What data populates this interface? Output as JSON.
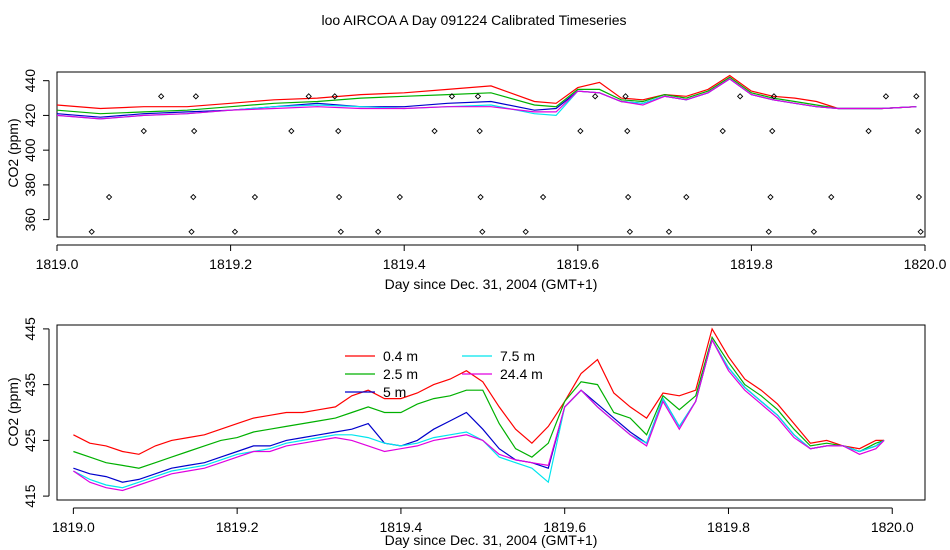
{
  "title": "loo AIRCOA A  Day 091224  Calibrated Timeseries",
  "colors": {
    "0.4 m": "#ff0000",
    "2.5 m": "#00b000",
    "5 m": "#0000cc",
    "7.5 m": "#00e5ee",
    "24.4 m": "#e000e0"
  },
  "chart_data": [
    {
      "type": "line",
      "xlabel": "Day since Dec. 31, 2004 (GMT+1)",
      "ylabel": "CO2 (ppm)",
      "xlim": [
        1819.0,
        1820.0
      ],
      "ylim": [
        350,
        445
      ],
      "xticks": [
        "1819.0",
        "1819.2",
        "1819.4",
        "1819.6",
        "1819.8",
        "1820.0"
      ],
      "yticks": [
        "360",
        "380",
        "400",
        "420",
        "440"
      ],
      "x": [
        1819.0,
        1819.05,
        1819.1,
        1819.15,
        1819.2,
        1819.25,
        1819.3,
        1819.35,
        1819.4,
        1819.45,
        1819.5,
        1819.55,
        1819.575,
        1819.6,
        1819.625,
        1819.65,
        1819.675,
        1819.7,
        1819.725,
        1819.75,
        1819.775,
        1819.8,
        1819.825,
        1819.85,
        1819.875,
        1819.9,
        1819.95,
        1819.99
      ],
      "series": [
        {
          "name": "0.4 m",
          "values": [
            426,
            424,
            425,
            425,
            427,
            429,
            430,
            432,
            433,
            435,
            437,
            428,
            427,
            436,
            439,
            430,
            429,
            432,
            431,
            435,
            443,
            434,
            431,
            430,
            428,
            424,
            424,
            425
          ]
        },
        {
          "name": "2.5 m",
          "values": [
            423,
            421,
            422,
            423,
            425,
            427,
            428,
            430,
            431,
            432,
            433,
            426,
            425,
            435,
            435,
            429,
            428,
            432,
            430,
            434,
            442,
            433,
            430,
            428,
            426,
            424,
            424,
            425
          ]
        },
        {
          "name": "5 m",
          "values": [
            421,
            419,
            421,
            422,
            423,
            425,
            427,
            425,
            425,
            427,
            428,
            423,
            424,
            434,
            433,
            428,
            427,
            431,
            429,
            433,
            441,
            432,
            429,
            427,
            425,
            424,
            424,
            425
          ]
        },
        {
          "name": "7.5 m",
          "values": [
            420,
            418,
            420,
            421,
            423,
            425,
            426,
            425,
            424,
            425,
            426,
            421,
            420,
            434,
            433,
            428,
            427,
            431,
            429,
            433,
            441,
            432,
            429,
            427,
            425,
            424,
            424,
            425
          ]
        },
        {
          "name": "24.4 m",
          "values": [
            420,
            418,
            420,
            421,
            423,
            424,
            425,
            424,
            424,
            425,
            425,
            422,
            422,
            434,
            433,
            428,
            426,
            431,
            429,
            433,
            441,
            432,
            429,
            427,
            425,
            424,
            424,
            425
          ]
        }
      ],
      "markers": [
        {
          "x": 1819.04,
          "y": 353
        },
        {
          "x": 1819.06,
          "y": 373
        },
        {
          "x": 1819.1,
          "y": 411
        },
        {
          "x": 1819.12,
          "y": 431
        },
        {
          "x": 1819.155,
          "y": 353
        },
        {
          "x": 1819.157,
          "y": 373
        },
        {
          "x": 1819.158,
          "y": 411
        },
        {
          "x": 1819.16,
          "y": 431
        },
        {
          "x": 1819.205,
          "y": 353
        },
        {
          "x": 1819.228,
          "y": 373
        },
        {
          "x": 1819.27,
          "y": 411
        },
        {
          "x": 1819.29,
          "y": 431
        },
        {
          "x": 1819.32,
          "y": 431
        },
        {
          "x": 1819.324,
          "y": 411
        },
        {
          "x": 1819.325,
          "y": 373
        },
        {
          "x": 1819.327,
          "y": 353
        },
        {
          "x": 1819.37,
          "y": 353
        },
        {
          "x": 1819.395,
          "y": 373
        },
        {
          "x": 1819.435,
          "y": 411
        },
        {
          "x": 1819.455,
          "y": 431
        },
        {
          "x": 1819.485,
          "y": 431
        },
        {
          "x": 1819.487,
          "y": 411
        },
        {
          "x": 1819.488,
          "y": 373
        },
        {
          "x": 1819.49,
          "y": 353
        },
        {
          "x": 1819.54,
          "y": 353
        },
        {
          "x": 1819.56,
          "y": 373
        },
        {
          "x": 1819.603,
          "y": 411
        },
        {
          "x": 1819.62,
          "y": 431
        },
        {
          "x": 1819.655,
          "y": 431
        },
        {
          "x": 1819.657,
          "y": 411
        },
        {
          "x": 1819.658,
          "y": 373
        },
        {
          "x": 1819.66,
          "y": 353
        },
        {
          "x": 1819.705,
          "y": 353
        },
        {
          "x": 1819.725,
          "y": 373
        },
        {
          "x": 1819.767,
          "y": 411
        },
        {
          "x": 1819.787,
          "y": 431
        },
        {
          "x": 1819.82,
          "y": 353
        },
        {
          "x": 1819.822,
          "y": 373
        },
        {
          "x": 1819.824,
          "y": 411
        },
        {
          "x": 1819.826,
          "y": 431
        },
        {
          "x": 1819.872,
          "y": 353
        },
        {
          "x": 1819.892,
          "y": 373
        },
        {
          "x": 1819.935,
          "y": 411
        },
        {
          "x": 1819.955,
          "y": 431
        },
        {
          "x": 1819.99,
          "y": 431
        },
        {
          "x": 1819.992,
          "y": 411
        },
        {
          "x": 1819.993,
          "y": 373
        },
        {
          "x": 1819.995,
          "y": 353
        }
      ]
    },
    {
      "type": "line",
      "xlabel": "Day since Dec. 31, 2004 (GMT+1)",
      "ylabel": "CO2 (ppm)",
      "xlim": [
        1818.98,
        1820.04
      ],
      "ylim": [
        414.3,
        445.7
      ],
      "xticks": [
        "1819.0",
        "1819.2",
        "1819.4",
        "1819.6",
        "1819.8",
        "1820.0"
      ],
      "yticks": [
        "415",
        "425",
        "435",
        "445"
      ],
      "legend": [
        "0.4 m",
        "2.5 m",
        "5 m",
        "7.5 m",
        "24.4 m"
      ],
      "x": [
        1819.0,
        1819.02,
        1819.04,
        1819.06,
        1819.08,
        1819.1,
        1819.12,
        1819.14,
        1819.16,
        1819.18,
        1819.2,
        1819.22,
        1819.24,
        1819.26,
        1819.28,
        1819.3,
        1819.32,
        1819.34,
        1819.36,
        1819.38,
        1819.4,
        1819.42,
        1819.44,
        1819.46,
        1819.48,
        1819.5,
        1819.52,
        1819.54,
        1819.56,
        1819.58,
        1819.6,
        1819.62,
        1819.64,
        1819.66,
        1819.68,
        1819.7,
        1819.72,
        1819.74,
        1819.76,
        1819.78,
        1819.8,
        1819.82,
        1819.84,
        1819.86,
        1819.88,
        1819.9,
        1819.92,
        1819.94,
        1819.96,
        1819.98,
        1819.99
      ],
      "series": [
        {
          "name": "0.4 m",
          "values": [
            426,
            424.5,
            424,
            423,
            422.5,
            424,
            425,
            425.5,
            426,
            427,
            428,
            429,
            429.5,
            430,
            430,
            430.5,
            431,
            433,
            434,
            432.5,
            432.5,
            433.5,
            435,
            436,
            437.5,
            435.5,
            431,
            427,
            424.5,
            427.5,
            432,
            437,
            439.5,
            433.5,
            431,
            429,
            433.5,
            433,
            434,
            445,
            440,
            436,
            434,
            431.5,
            428,
            424.5,
            425,
            424,
            423.5,
            425,
            425
          ]
        },
        {
          "name": "2.5 m",
          "values": [
            423,
            422,
            421,
            420.5,
            420,
            421,
            422,
            423,
            424,
            425,
            425.5,
            426.5,
            427,
            427.5,
            428,
            428.5,
            429,
            430,
            431,
            430,
            430,
            431.5,
            432.5,
            433,
            434,
            434,
            428,
            423.5,
            422,
            424.5,
            432,
            435.5,
            435,
            430,
            429,
            426,
            433,
            430.5,
            433,
            443.5,
            439,
            435,
            433,
            430.5,
            427,
            424,
            424.5,
            424,
            423,
            424.5,
            425
          ]
        },
        {
          "name": "5 m",
          "values": [
            420,
            419,
            418.5,
            417.5,
            418,
            419,
            420,
            420.5,
            421,
            422,
            423,
            424,
            424,
            425,
            425.5,
            426,
            426.5,
            427,
            428,
            424.5,
            424,
            425,
            427,
            428.5,
            430,
            427,
            423.5,
            421.5,
            421,
            420,
            431,
            434,
            431.5,
            429,
            426.5,
            424.5,
            432.5,
            427.5,
            432,
            443,
            438,
            434.5,
            432,
            429.5,
            426,
            423.5,
            424,
            424,
            423,
            424,
            425
          ]
        },
        {
          "name": "7.5 m",
          "values": [
            419.5,
            418,
            417,
            416.5,
            417.5,
            418.5,
            419.5,
            420,
            420.5,
            421.5,
            422.5,
            423,
            423.5,
            424.5,
            425,
            425.5,
            426,
            426,
            425.5,
            424.5,
            424,
            424.5,
            425.5,
            426,
            426.5,
            425,
            422,
            421,
            420,
            417.5,
            431,
            434,
            431,
            428.5,
            426,
            424.5,
            432.5,
            427.5,
            432,
            443,
            438,
            434.5,
            432,
            429.5,
            426,
            423.5,
            424,
            424,
            423,
            424,
            425
          ]
        },
        {
          "name": "24.4 m",
          "values": [
            419.5,
            417.5,
            416.5,
            416,
            417,
            418,
            419,
            419.5,
            420,
            421,
            422,
            423,
            423,
            424,
            424.5,
            425,
            425.5,
            425,
            424,
            423,
            423.5,
            424,
            425,
            425.5,
            426,
            425,
            422.5,
            421.5,
            421,
            420.5,
            431,
            434,
            431,
            428.5,
            426,
            424,
            432,
            427,
            432,
            443,
            437.5,
            434,
            431.5,
            429,
            425.5,
            423.5,
            424,
            424,
            422.5,
            423.5,
            425
          ]
        }
      ]
    }
  ]
}
